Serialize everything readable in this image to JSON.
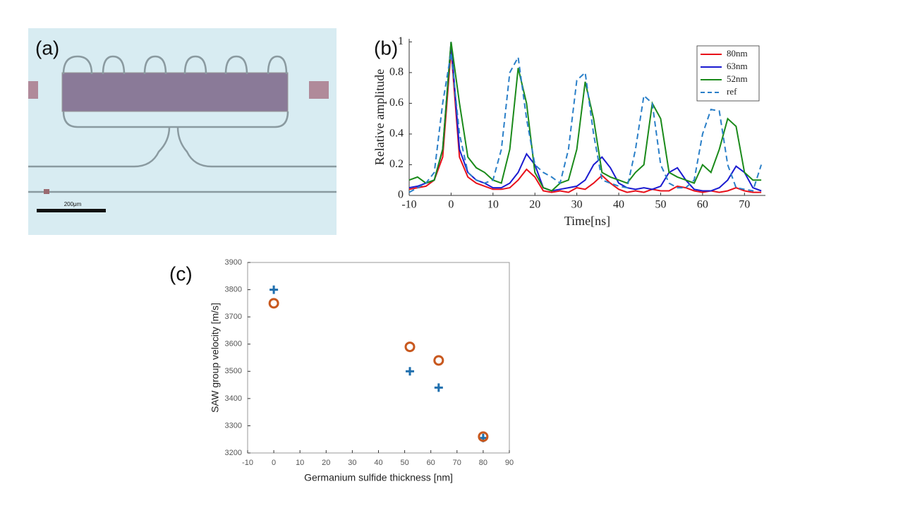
{
  "image": {
    "label": "(a)",
    "scale_label": "200μm"
  },
  "chart_data": [
    {
      "type": "line",
      "label": "(b)",
      "xlabel": "Time[ns]",
      "ylabel": "Relative amplitude",
      "xlim": [
        -10,
        75
      ],
      "ylim": [
        0,
        1.02
      ],
      "xticks": [
        -10,
        0,
        10,
        20,
        30,
        40,
        50,
        60,
        70
      ],
      "yticks": [
        0,
        0.2,
        0.4,
        0.6,
        0.8,
        1
      ],
      "legend": "upper right",
      "x": [
        -10,
        -8,
        -6,
        -4,
        -2,
        0,
        2,
        4,
        6,
        8,
        10,
        12,
        14,
        16,
        18,
        20,
        22,
        24,
        26,
        28,
        30,
        32,
        34,
        36,
        38,
        40,
        42,
        44,
        46,
        48,
        50,
        52,
        54,
        56,
        58,
        60,
        62,
        64,
        66,
        68,
        70,
        72,
        74
      ],
      "series": [
        {
          "name": "80nm",
          "color": "#e8101a",
          "dash": false,
          "values": [
            0.04,
            0.05,
            0.06,
            0.1,
            0.25,
            0.95,
            0.25,
            0.12,
            0.08,
            0.06,
            0.04,
            0.04,
            0.05,
            0.1,
            0.17,
            0.12,
            0.03,
            0.02,
            0.03,
            0.02,
            0.05,
            0.04,
            0.08,
            0.13,
            0.08,
            0.04,
            0.02,
            0.03,
            0.02,
            0.04,
            0.03,
            0.03,
            0.06,
            0.05,
            0.03,
            0.02,
            0.03,
            0.02,
            0.03,
            0.05,
            0.03,
            0.02,
            0.02
          ]
        },
        {
          "name": "63nm",
          "color": "#1a1ad0",
          "dash": false,
          "values": [
            0.05,
            0.06,
            0.08,
            0.1,
            0.3,
            1.0,
            0.3,
            0.15,
            0.1,
            0.08,
            0.05,
            0.05,
            0.08,
            0.15,
            0.27,
            0.2,
            0.05,
            0.03,
            0.04,
            0.05,
            0.06,
            0.1,
            0.2,
            0.25,
            0.18,
            0.08,
            0.05,
            0.04,
            0.05,
            0.04,
            0.06,
            0.15,
            0.18,
            0.1,
            0.04,
            0.03,
            0.03,
            0.05,
            0.1,
            0.19,
            0.15,
            0.05,
            0.03
          ]
        },
        {
          "name": "52nm",
          "color": "#1a8a1a",
          "dash": false,
          "values": [
            0.1,
            0.12,
            0.08,
            0.1,
            0.3,
            1.0,
            0.6,
            0.25,
            0.18,
            0.15,
            0.1,
            0.08,
            0.3,
            0.83,
            0.6,
            0.15,
            0.05,
            0.03,
            0.08,
            0.1,
            0.3,
            0.74,
            0.5,
            0.15,
            0.12,
            0.1,
            0.08,
            0.15,
            0.2,
            0.6,
            0.5,
            0.15,
            0.12,
            0.1,
            0.08,
            0.2,
            0.15,
            0.3,
            0.5,
            0.45,
            0.15,
            0.1,
            0.1
          ]
        },
        {
          "name": "ref",
          "color": "#2a7fc8",
          "dash": true,
          "values": [
            0.02,
            0.05,
            0.08,
            0.15,
            0.6,
            0.93,
            0.4,
            0.15,
            0.1,
            0.08,
            0.1,
            0.3,
            0.8,
            0.9,
            0.5,
            0.2,
            0.15,
            0.12,
            0.08,
            0.3,
            0.75,
            0.8,
            0.4,
            0.1,
            0.08,
            0.06,
            0.05,
            0.3,
            0.65,
            0.6,
            0.2,
            0.08,
            0.05,
            0.05,
            0.1,
            0.4,
            0.56,
            0.55,
            0.2,
            0.05,
            0.04,
            0.03,
            0.2
          ]
        }
      ]
    },
    {
      "type": "scatter",
      "label": "(c)",
      "xlabel": "Germanium sulfide thickness [nm]",
      "ylabel": "SAW group velocity [m/s]",
      "xlim": [
        -10,
        90
      ],
      "ylim": [
        3200,
        3900
      ],
      "xticks": [
        -10,
        0,
        10,
        20,
        30,
        40,
        50,
        60,
        70,
        80,
        90
      ],
      "yticks": [
        3200,
        3300,
        3400,
        3500,
        3600,
        3700,
        3800,
        3900
      ],
      "x": [
        0,
        52,
        63,
        80
      ],
      "series": [
        {
          "marker": "plus",
          "color": "#1f6fae",
          "values": [
            3800,
            3500,
            3440,
            3255
          ]
        },
        {
          "marker": "circle",
          "color": "#c8581e",
          "values": [
            3750,
            3590,
            3540,
            3260
          ]
        }
      ]
    }
  ]
}
